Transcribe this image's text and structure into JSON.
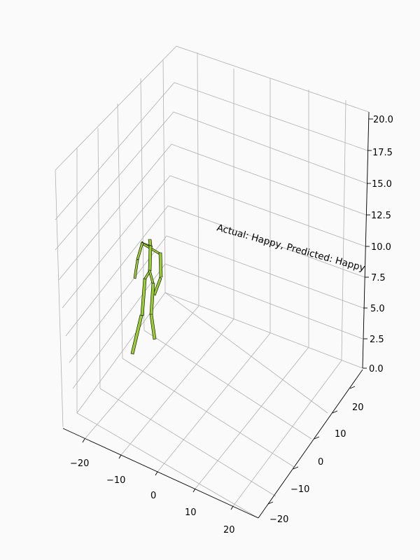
{
  "chart_data": {
    "type": "3d-skeleton",
    "annotation": "Actual: Happy, Predicted: Happy",
    "bone_color": "#9acd32",
    "axes": {
      "x": {
        "ticks": [
          -20,
          -10,
          0,
          10,
          20
        ],
        "tick_labels": [
          "−20",
          "−10",
          "0",
          "10",
          "20"
        ],
        "lim": [
          -25,
          25
        ]
      },
      "y": {
        "ticks": [
          -20,
          -10,
          0,
          10,
          20
        ],
        "tick_labels": [
          "−20",
          "−10",
          "0",
          "10",
          "20"
        ],
        "lim": [
          -25,
          25
        ]
      },
      "z": {
        "ticks": [
          0,
          2.5,
          5,
          7.5,
          10,
          12.5,
          15,
          17.5,
          20
        ],
        "tick_labels": [
          "0.0",
          "2.5",
          "5.0",
          "7.5",
          "10.0",
          "12.5",
          "15.0",
          "17.5",
          "20.0"
        ],
        "lim": [
          0,
          20
        ]
      }
    },
    "grid": true,
    "title": "",
    "xlabel": "",
    "ylabel": "",
    "zlabel": ""
  }
}
